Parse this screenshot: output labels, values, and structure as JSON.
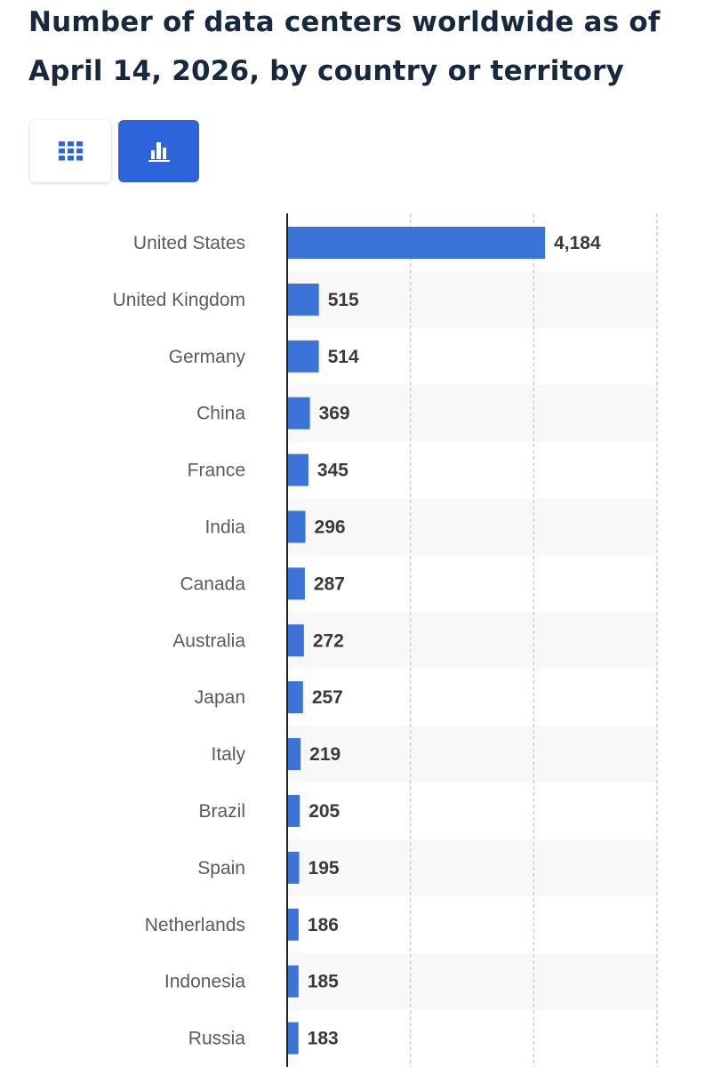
{
  "title": "Number of data centers worldwide as of April 14, 2026, by country or territory",
  "view_toggle": {
    "table_icon": "table-grid-icon",
    "chart_icon": "bar-chart-icon",
    "active": "chart"
  },
  "colors": {
    "bar": "#3b73d8",
    "active_button": "#2d64db",
    "title": "#18283f",
    "axis": "#222222",
    "stripe": "#f8f8f8",
    "gridline": "#cfcfcf"
  },
  "chart_data": {
    "type": "bar",
    "orientation": "horizontal",
    "title": "Number of data centers worldwide as of April 14, 2026, by country or territory",
    "categories": [
      "United States",
      "United Kingdom",
      "Germany",
      "China",
      "France",
      "India",
      "Canada",
      "Australia",
      "Japan",
      "Italy",
      "Brazil",
      "Spain",
      "Netherlands",
      "Indonesia",
      "Russia"
    ],
    "values": [
      4184,
      515,
      514,
      369,
      345,
      296,
      287,
      272,
      257,
      219,
      205,
      195,
      186,
      185,
      183
    ],
    "value_labels": [
      "4,184",
      "515",
      "514",
      "369",
      "345",
      "296",
      "287",
      "272",
      "257",
      "219",
      "205",
      "195",
      "186",
      "185",
      "183"
    ],
    "xlim": [
      0,
      6000
    ],
    "gridlines_at": [
      2000,
      4000,
      6000
    ],
    "grid": "dashed vertical",
    "legend": "none",
    "xlabel": "",
    "ylabel": ""
  }
}
